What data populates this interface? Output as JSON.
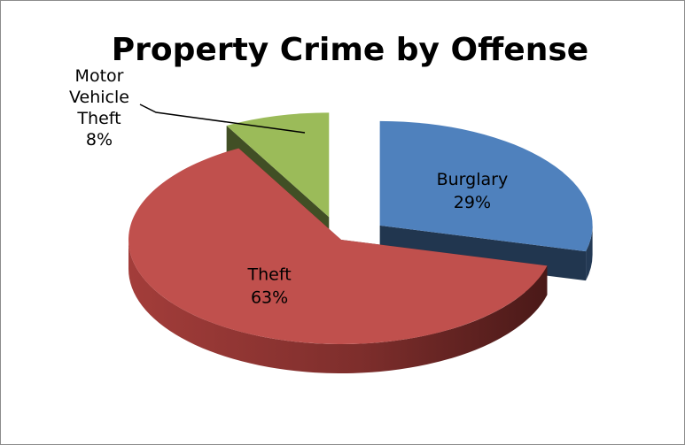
{
  "chart_data": {
    "type": "pie",
    "title": "Property Crime by Offense",
    "slices": [
      {
        "label": "Burglary",
        "value": 29,
        "value_label": "29%",
        "color": "#4f81bd",
        "exploded": true
      },
      {
        "label": "Theft",
        "value": 63,
        "value_label": "63%",
        "color": "#c0504d",
        "exploded": false
      },
      {
        "label": "Motor Vehicle Theft",
        "label_lines": [
          "Motor",
          "Vehicle",
          "Theft"
        ],
        "value": 8,
        "value_label": "8%",
        "color": "#9bbb59",
        "exploded": true
      }
    ],
    "style": "3d-exploded",
    "legend": "none"
  }
}
